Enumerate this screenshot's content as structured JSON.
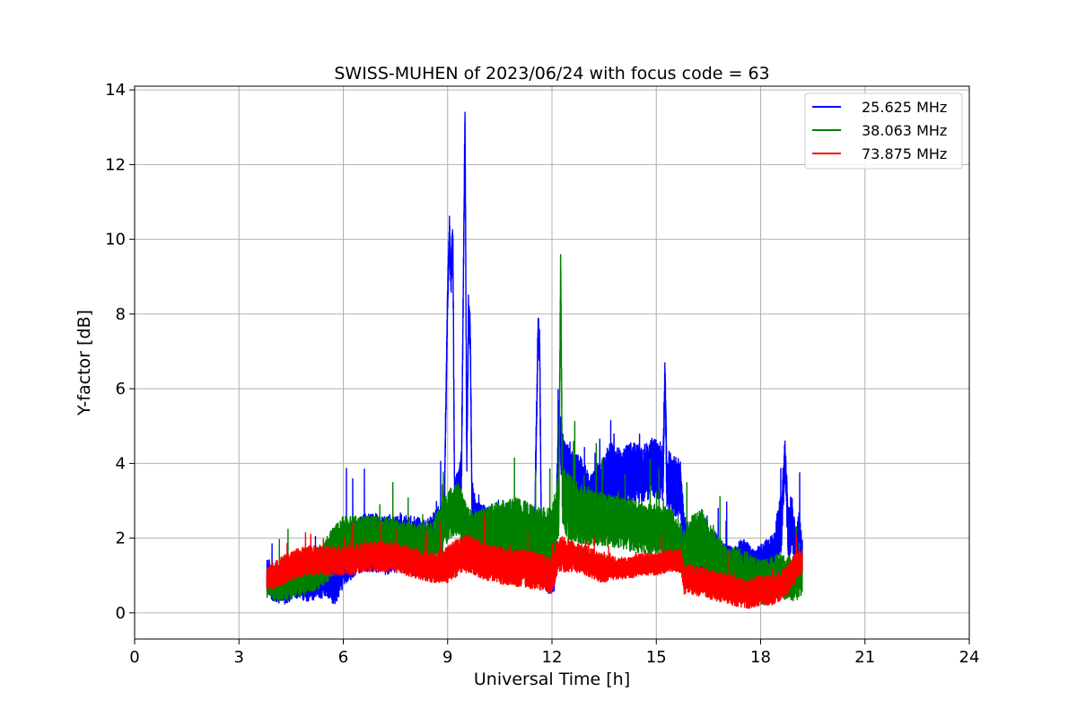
{
  "chart_data": {
    "type": "line",
    "title": "SWISS-MUHEN of 2023/06/24 with focus code = 63",
    "xlabel": "Universal Time [h]",
    "ylabel": "Y-factor [dB]",
    "xlim": [
      0,
      24
    ],
    "ylim": [
      -0.7,
      14.1
    ],
    "xticks": [
      0,
      3,
      6,
      9,
      12,
      15,
      18,
      21,
      24
    ],
    "yticks": [
      0,
      2,
      4,
      6,
      8,
      10,
      12,
      14
    ],
    "xtick_labels": [
      "0",
      "3",
      "6",
      "9",
      "12",
      "15",
      "18",
      "21",
      "24"
    ],
    "ytick_labels": [
      "0",
      "2",
      "4",
      "6",
      "8",
      "10",
      "12",
      "14"
    ],
    "grid": true,
    "legend_position": "top-right",
    "series": [
      {
        "name": "25.625 MHz",
        "color": "#0000ff",
        "x": [
          3.8,
          4.0,
          4.3,
          4.6,
          5.0,
          5.4,
          5.8,
          6.0,
          6.4,
          6.8,
          7.2,
          7.6,
          8.0,
          8.4,
          8.7,
          8.9,
          9.0,
          9.05,
          9.1,
          9.15,
          9.2,
          9.3,
          9.4,
          9.5,
          9.55,
          9.6,
          9.65,
          9.7,
          9.8,
          10.0,
          10.3,
          10.6,
          10.9,
          11.2,
          11.5,
          11.6,
          11.65,
          11.7,
          11.9,
          12.1,
          12.2,
          12.3,
          12.5,
          12.8,
          13.1,
          13.4,
          13.7,
          14.0,
          14.3,
          14.6,
          14.9,
          15.2,
          15.25,
          15.3,
          15.5,
          15.7,
          15.8,
          16.0,
          16.3,
          16.6,
          16.9,
          17.2,
          17.5,
          17.8,
          18.1,
          18.4,
          18.6,
          18.7,
          18.8,
          18.9,
          19.0,
          19.1,
          19.2
        ],
        "values": [
          1.0,
          0.8,
          0.7,
          0.9,
          0.8,
          0.9,
          0.8,
          1.5,
          1.8,
          1.9,
          1.8,
          1.9,
          1.8,
          1.7,
          2.2,
          2.5,
          8.5,
          10.1,
          9.0,
          10.1,
          3.0,
          3.2,
          3.8,
          13.4,
          4.0,
          8.0,
          7.5,
          3.0,
          2.5,
          2.3,
          2.2,
          2.0,
          1.8,
          1.6,
          2.0,
          7.6,
          7.0,
          1.4,
          1.0,
          1.2,
          5.3,
          4.0,
          3.5,
          3.3,
          3.0,
          3.3,
          3.8,
          3.6,
          3.8,
          3.7,
          3.9,
          3.8,
          6.5,
          3.6,
          3.4,
          3.3,
          2.0,
          1.6,
          1.4,
          1.6,
          1.2,
          1.1,
          1.3,
          1.0,
          1.2,
          1.4,
          2.5,
          4.2,
          2.0,
          2.5,
          1.5,
          2.0,
          1.5
        ],
        "band": [
          0.5,
          0.5,
          0.5,
          0.5,
          0.5,
          0.5,
          0.6,
          0.8,
          0.8,
          0.8,
          0.8,
          0.8,
          0.8,
          0.8,
          0.6,
          0.6,
          0.5,
          0.5,
          0.5,
          0.5,
          0.6,
          0.6,
          0.6,
          0.5,
          0.6,
          0.5,
          0.5,
          0.6,
          0.6,
          0.6,
          0.6,
          0.6,
          0.6,
          0.6,
          0.6,
          0.5,
          0.5,
          0.6,
          0.5,
          0.6,
          0.6,
          0.9,
          0.9,
          0.9,
          0.8,
          0.8,
          0.8,
          0.8,
          0.8,
          0.8,
          0.8,
          0.8,
          0.5,
          0.8,
          0.8,
          0.8,
          0.6,
          0.7,
          0.7,
          0.7,
          0.7,
          0.7,
          0.7,
          0.7,
          0.7,
          0.8,
          0.8,
          0.5,
          0.8,
          0.8,
          0.7,
          0.7,
          0.7
        ]
      },
      {
        "name": "38.063 MHz",
        "color": "#008000",
        "x": [
          3.8,
          4.2,
          4.6,
          5.0,
          5.4,
          5.8,
          6.0,
          6.5,
          7.0,
          7.5,
          8.0,
          8.5,
          8.8,
          9.0,
          9.3,
          9.6,
          10.0,
          10.5,
          11.0,
          11.5,
          12.0,
          12.2,
          12.25,
          12.3,
          12.5,
          13.0,
          13.5,
          14.0,
          14.5,
          15.0,
          15.5,
          15.8,
          16.0,
          16.3,
          16.6,
          17.0,
          17.5,
          18.0,
          18.5,
          19.0,
          19.2
        ],
        "values": [
          0.8,
          0.8,
          0.9,
          1.0,
          1.3,
          1.7,
          1.9,
          2.0,
          2.0,
          1.9,
          1.8,
          1.8,
          2.2,
          2.6,
          2.8,
          2.0,
          2.0,
          2.2,
          2.3,
          2.1,
          2.0,
          3.0,
          9.5,
          3.0,
          2.8,
          2.6,
          2.5,
          2.4,
          2.3,
          2.2,
          2.1,
          1.5,
          1.8,
          2.0,
          1.6,
          1.1,
          1.0,
          0.8,
          1.0,
          0.9,
          1.1
        ],
        "band": [
          0.4,
          0.5,
          0.5,
          0.5,
          0.6,
          0.7,
          0.7,
          0.6,
          0.6,
          0.6,
          0.6,
          0.6,
          0.7,
          0.7,
          0.7,
          0.8,
          0.8,
          0.8,
          0.8,
          0.8,
          0.8,
          0.9,
          0.5,
          0.9,
          0.9,
          0.8,
          0.7,
          0.7,
          0.7,
          0.7,
          0.7,
          0.7,
          0.8,
          0.8,
          0.7,
          0.7,
          0.7,
          0.6,
          0.6,
          0.6,
          0.6
        ]
      },
      {
        "name": "73.875 MHz",
        "color": "#ff0000",
        "x": [
          3.8,
          4.2,
          4.6,
          5.0,
          5.4,
          5.8,
          6.2,
          6.6,
          7.0,
          7.4,
          7.8,
          8.2,
          8.6,
          9.0,
          9.3,
          9.6,
          10.0,
          10.4,
          10.8,
          11.2,
          11.6,
          12.0,
          12.2,
          12.6,
          13.0,
          13.4,
          13.8,
          14.2,
          14.6,
          15.0,
          15.4,
          15.7,
          15.8,
          16.0,
          16.4,
          16.8,
          17.2,
          17.6,
          18.0,
          18.4,
          18.8,
          19.0,
          19.2
        ],
        "values": [
          0.9,
          1.1,
          1.3,
          1.4,
          1.4,
          1.4,
          1.4,
          1.5,
          1.5,
          1.5,
          1.4,
          1.3,
          1.2,
          1.3,
          1.5,
          1.6,
          1.4,
          1.3,
          1.2,
          1.2,
          1.1,
          1.0,
          1.6,
          1.5,
          1.4,
          1.2,
          1.2,
          1.2,
          1.3,
          1.3,
          1.4,
          1.4,
          0.9,
          0.9,
          0.8,
          0.7,
          0.6,
          0.5,
          0.6,
          0.6,
          0.9,
          1.2,
          1.4
        ],
        "band": [
          0.3,
          0.4,
          0.4,
          0.4,
          0.4,
          0.4,
          0.4,
          0.4,
          0.4,
          0.4,
          0.4,
          0.4,
          0.4,
          0.5,
          0.5,
          0.5,
          0.5,
          0.5,
          0.5,
          0.5,
          0.5,
          0.5,
          0.5,
          0.4,
          0.4,
          0.4,
          0.3,
          0.3,
          0.3,
          0.3,
          0.3,
          0.3,
          0.4,
          0.4,
          0.4,
          0.4,
          0.4,
          0.4,
          0.4,
          0.4,
          0.4,
          0.4,
          0.3
        ]
      }
    ]
  }
}
